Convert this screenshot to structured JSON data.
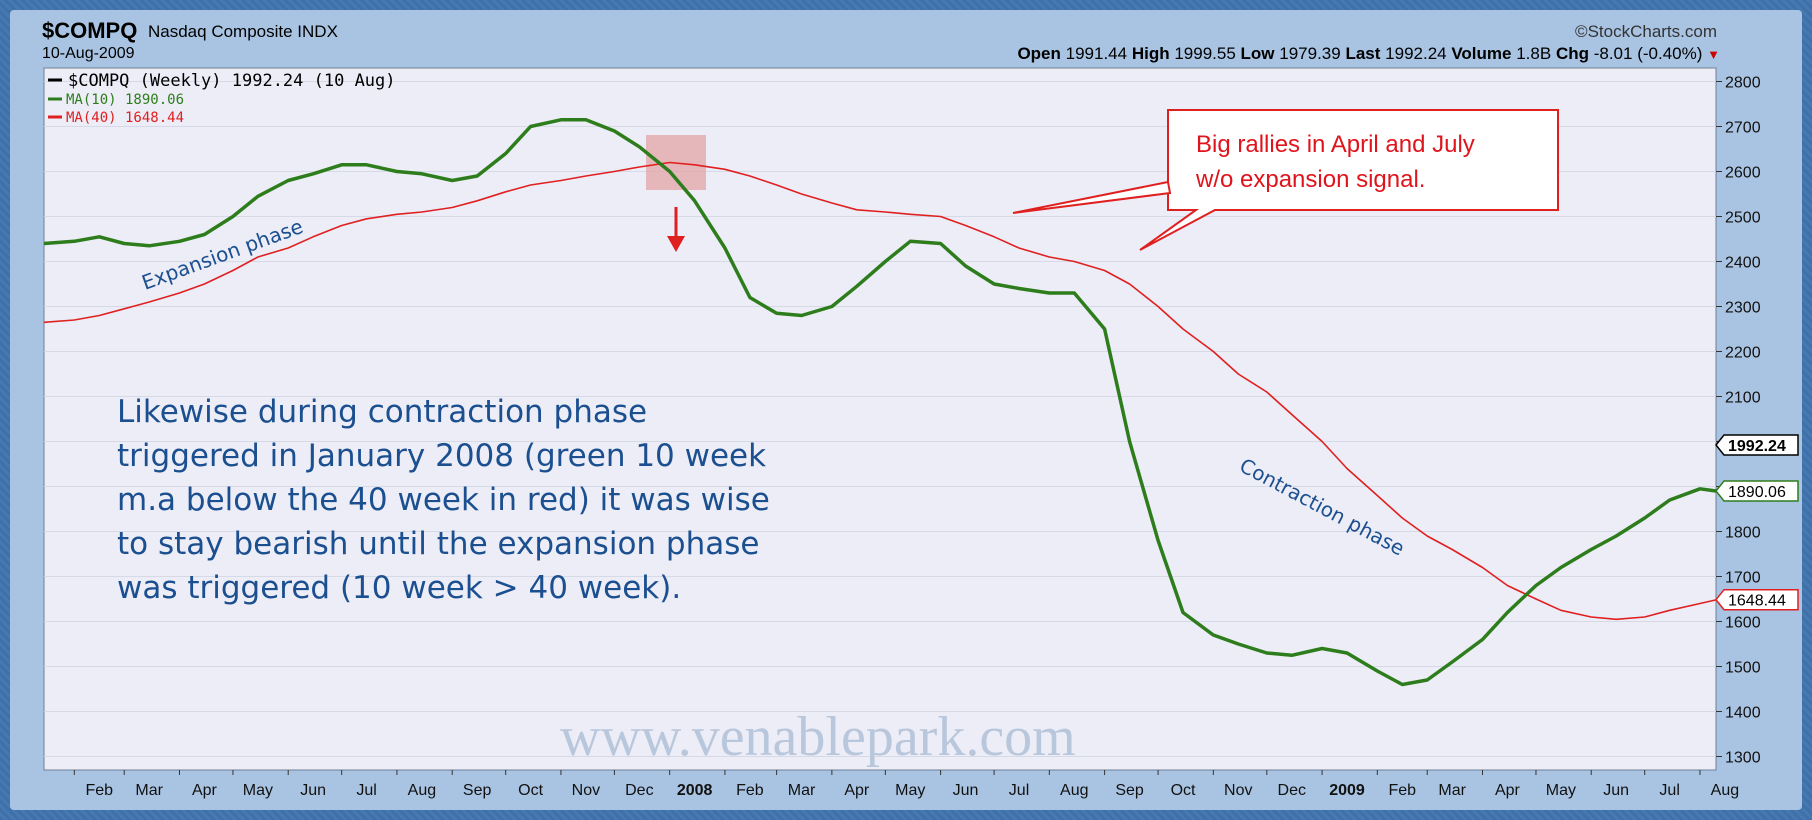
{
  "header": {
    "symbol": "$COMPQ",
    "name": "Nasdaq Composite INDX",
    "date": "10-Aug-2009",
    "brand": "©StockCharts.com",
    "open_label": "Open",
    "open": "1991.44",
    "high_label": "High",
    "high": "1999.55",
    "low_label": "Low",
    "low": "1979.39",
    "last_label": "Last",
    "last": "1992.24",
    "volume_label": "Volume",
    "volume": "1.8B",
    "chg_label": "Chg",
    "chg": "-8.01 (-0.40%)"
  },
  "legend": {
    "price": "$COMPQ (Weekly) 1992.24 (10 Aug)",
    "ma10": "MA(10) 1890.06",
    "ma40": "MA(40) 1648.44"
  },
  "annotations": {
    "callout_line1": "Big rallies in April and July",
    "callout_line2": "w/o expansion signal.",
    "expansion": "Expansion phase",
    "contraction": "Contraction phase",
    "body_lines": [
      "Likewise during contraction phase",
      "triggered in January 2008 (green 10 week",
      "m.a below the 40 week in red) it was wise",
      "to stay bearish until the expansion phase",
      "was triggered (10 week > 40 week)."
    ],
    "watermark": "www.venablepark.com"
  },
  "colors": {
    "ma10": "#2e7d1c",
    "ma40": "#e02020",
    "plot_bg": "#ecedf6",
    "annotation_text": "#1b4f8f",
    "callout_text": "#e0141c",
    "watermark": "#b9c7dc"
  },
  "chart_data": {
    "type": "line",
    "x_tick_labels": [
      "Feb",
      "Mar",
      "Apr",
      "May",
      "Jun",
      "Jul",
      "Aug",
      "Sep",
      "Oct",
      "Nov",
      "Dec",
      "2008",
      "Feb",
      "Mar",
      "Apr",
      "May",
      "Jun",
      "Jul",
      "Aug",
      "Sep",
      "Oct",
      "Nov",
      "Dec",
      "2009",
      "Feb",
      "Mar",
      "Apr",
      "May",
      "Jun",
      "Jul",
      "Aug"
    ],
    "y_ticks": [
      1300,
      1400,
      1500,
      1600,
      1700,
      1800,
      1900,
      2000,
      2100,
      2200,
      2300,
      2400,
      2500,
      2600,
      2700,
      2800
    ],
    "ylim": [
      1270,
      2830
    ],
    "xlim": [
      "2007-01-15",
      "2009-08-10"
    ],
    "price_labels": [
      {
        "label": "1992.24",
        "value": 1992.24,
        "style": "last"
      },
      {
        "label": "1890.06",
        "value": 1890.06,
        "style": "ma10"
      },
      {
        "label": "1648.44",
        "value": 1648.44,
        "style": "ma40"
      }
    ],
    "series": [
      {
        "name": "MA(10)",
        "x": [
          "2007-01-15",
          "2007-02-01",
          "2007-02-15",
          "2007-03-01",
          "2007-03-15",
          "2007-04-01",
          "2007-04-15",
          "2007-05-01",
          "2007-05-15",
          "2007-06-01",
          "2007-06-15",
          "2007-07-01",
          "2007-07-15",
          "2007-08-01",
          "2007-08-15",
          "2007-09-01",
          "2007-09-15",
          "2007-10-01",
          "2007-10-15",
          "2007-11-01",
          "2007-11-15",
          "2007-12-01",
          "2007-12-15",
          "2008-01-01",
          "2008-01-15",
          "2008-02-01",
          "2008-02-15",
          "2008-03-01",
          "2008-03-15",
          "2008-04-01",
          "2008-04-15",
          "2008-05-01",
          "2008-05-15",
          "2008-06-01",
          "2008-06-15",
          "2008-07-01",
          "2008-07-15",
          "2008-08-01",
          "2008-08-15",
          "2008-09-01",
          "2008-09-15",
          "2008-10-01",
          "2008-10-15",
          "2008-11-01",
          "2008-11-15",
          "2008-12-01",
          "2008-12-15",
          "2009-01-01",
          "2009-01-15",
          "2009-02-01",
          "2009-02-15",
          "2009-03-01",
          "2009-03-15",
          "2009-04-01",
          "2009-04-15",
          "2009-05-01",
          "2009-05-15",
          "2009-06-01",
          "2009-06-15",
          "2009-07-01",
          "2009-07-15",
          "2009-08-01",
          "2009-08-10"
        ],
        "values": [
          2440,
          2445,
          2455,
          2440,
          2435,
          2445,
          2460,
          2500,
          2545,
          2580,
          2595,
          2615,
          2615,
          2600,
          2595,
          2580,
          2590,
          2640,
          2700,
          2715,
          2715,
          2690,
          2655,
          2600,
          2535,
          2430,
          2320,
          2285,
          2280,
          2300,
          2345,
          2400,
          2445,
          2440,
          2390,
          2350,
          2340,
          2330,
          2330,
          2250,
          2000,
          1780,
          1620,
          1570,
          1550,
          1530,
          1525,
          1540,
          1530,
          1490,
          1460,
          1470,
          1510,
          1560,
          1620,
          1680,
          1720,
          1760,
          1790,
          1830,
          1870,
          1895,
          1890
        ]
      },
      {
        "name": "MA(40)",
        "x": [
          "2007-01-15",
          "2007-02-01",
          "2007-02-15",
          "2007-03-01",
          "2007-03-15",
          "2007-04-01",
          "2007-04-15",
          "2007-05-01",
          "2007-05-15",
          "2007-06-01",
          "2007-06-15",
          "2007-07-01",
          "2007-07-15",
          "2007-08-01",
          "2007-08-15",
          "2007-09-01",
          "2007-09-15",
          "2007-10-01",
          "2007-10-15",
          "2007-11-01",
          "2007-11-15",
          "2007-12-01",
          "2007-12-15",
          "2008-01-01",
          "2008-01-15",
          "2008-02-01",
          "2008-02-15",
          "2008-03-01",
          "2008-03-15",
          "2008-04-01",
          "2008-04-15",
          "2008-05-01",
          "2008-05-15",
          "2008-06-01",
          "2008-06-15",
          "2008-07-01",
          "2008-07-15",
          "2008-08-01",
          "2008-08-15",
          "2008-09-01",
          "2008-09-15",
          "2008-10-01",
          "2008-10-15",
          "2008-11-01",
          "2008-11-15",
          "2008-12-01",
          "2008-12-15",
          "2009-01-01",
          "2009-01-15",
          "2009-02-01",
          "2009-02-15",
          "2009-03-01",
          "2009-03-15",
          "2009-04-01",
          "2009-04-15",
          "2009-05-01",
          "2009-05-15",
          "2009-06-01",
          "2009-06-15",
          "2009-07-01",
          "2009-07-15",
          "2009-08-01",
          "2009-08-10"
        ],
        "values": [
          2265,
          2270,
          2280,
          2295,
          2310,
          2330,
          2350,
          2380,
          2410,
          2430,
          2455,
          2480,
          2495,
          2505,
          2510,
          2520,
          2535,
          2555,
          2570,
          2580,
          2590,
          2600,
          2610,
          2620,
          2615,
          2605,
          2590,
          2570,
          2550,
          2530,
          2515,
          2510,
          2505,
          2500,
          2480,
          2455,
          2430,
          2410,
          2400,
          2380,
          2350,
          2300,
          2250,
          2200,
          2150,
          2110,
          2060,
          2000,
          1940,
          1880,
          1830,
          1790,
          1760,
          1720,
          1680,
          1650,
          1625,
          1610,
          1605,
          1610,
          1625,
          1640,
          1648
        ]
      }
    ]
  }
}
